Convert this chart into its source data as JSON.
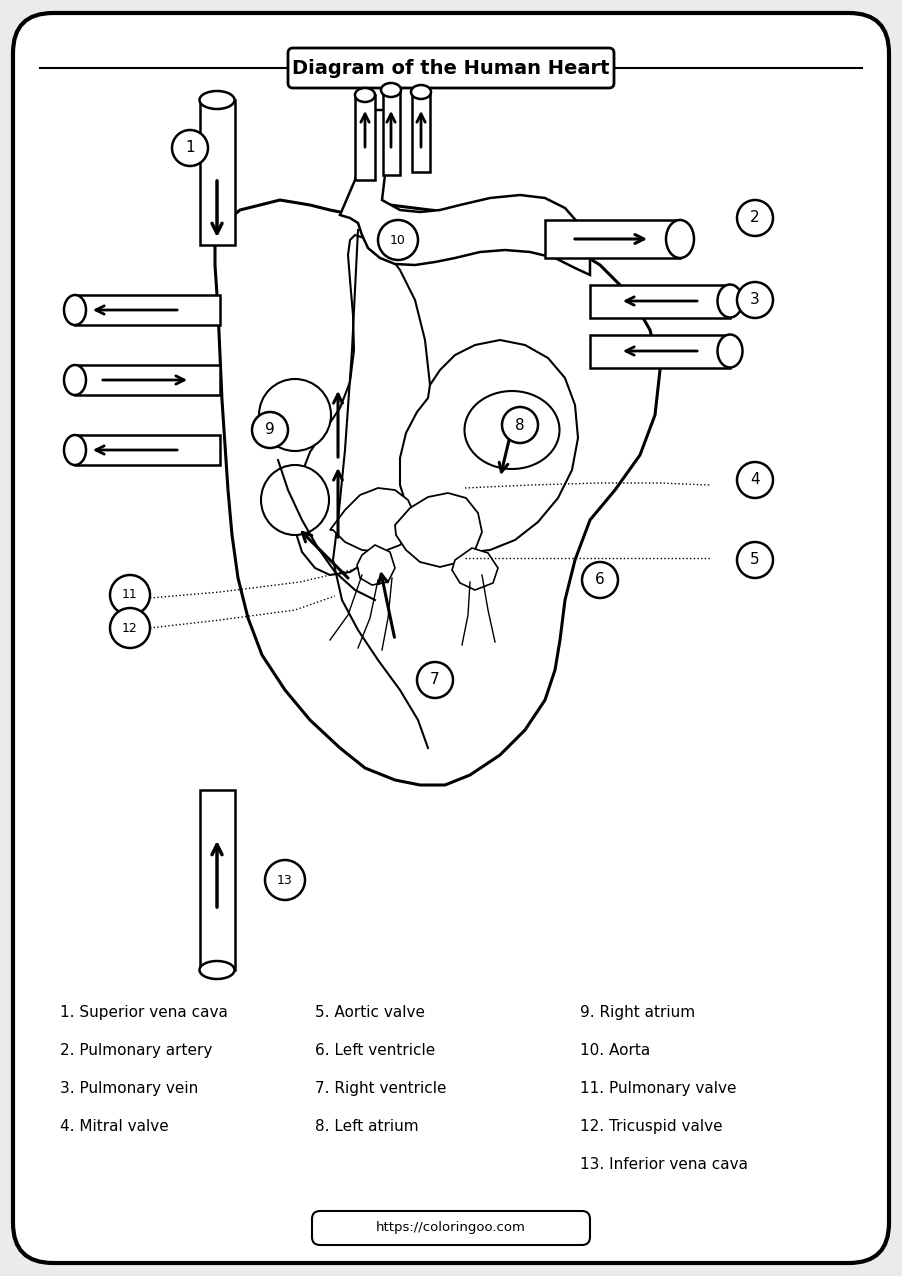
{
  "title": "Diagram of the Human Heart",
  "website": "https://coloringoo.com",
  "bg_color": "#ebebeb",
  "legend_col1": [
    "1. Superior vena cava",
    "2. Pulmonary artery",
    "3. Pulmonary vein",
    "4. Mitral valve"
  ],
  "legend_col2": [
    "5. Aortic valve",
    "6. Left ventricle",
    "7. Right ventricle",
    "8. Left atrium"
  ],
  "legend_col3": [
    "9. Right atrium",
    "10. Aorta",
    "11. Pulmonary valve",
    "12. Tricuspid valve",
    "13. Inferior vena cava"
  ],
  "fig_w": 9.02,
  "fig_h": 12.76,
  "dpi": 100
}
